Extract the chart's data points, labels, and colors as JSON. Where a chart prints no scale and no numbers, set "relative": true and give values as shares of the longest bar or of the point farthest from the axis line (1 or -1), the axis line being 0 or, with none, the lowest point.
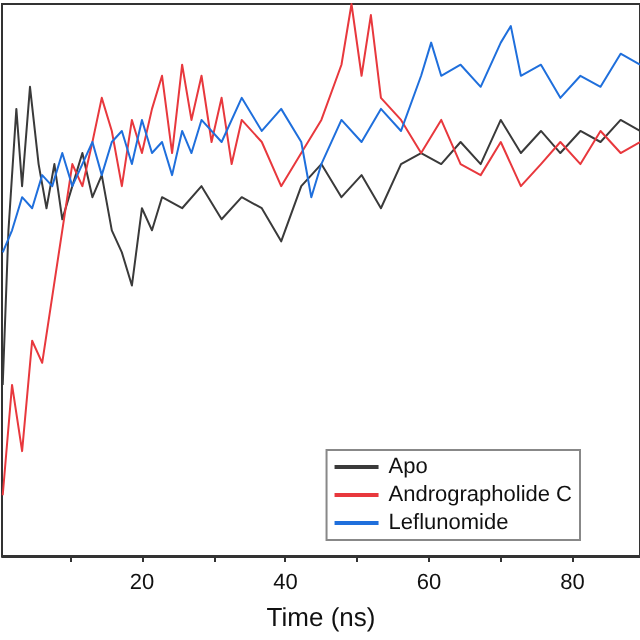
{
  "chart_data": {
    "type": "line",
    "xlabel": "Time (ns)",
    "relative": true,
    "xlim": [
      0.5,
      89.4
    ],
    "xticks": [
      {
        "value": 10,
        "label": null
      },
      20,
      {
        "value": 30,
        "label": null
      },
      40,
      {
        "value": 50,
        "label": null
      },
      60,
      {
        "value": 70,
        "label": null
      },
      80
    ],
    "grid": false,
    "legend": "bottom right",
    "marker": "none",
    "line_style": "solid",
    "series": [
      {
        "name": "Apo",
        "color": "#3a3a3a",
        "x": [
          0.6,
          1.4,
          2.5,
          3.3,
          4.4,
          5.6,
          6.7,
          7.8,
          8.9,
          10.3,
          11.7,
          13.1,
          14.4,
          15.8,
          17.2,
          18.6,
          20,
          21.4,
          22.8,
          25.6,
          28.3,
          31.1,
          33.9,
          36.7,
          39.4,
          42.2,
          45,
          47.8,
          50.6,
          53.3,
          56.1,
          58.9,
          61.7,
          64.4,
          67.2,
          70,
          72.8,
          75.6,
          78.3,
          81.1,
          83.9,
          86.7,
          89.4
        ],
        "values": [
          0.31,
          0.59,
          0.81,
          0.67,
          0.85,
          0.71,
          0.63,
          0.71,
          0.61,
          0.67,
          0.73,
          0.65,
          0.69,
          0.59,
          0.55,
          0.49,
          0.63,
          0.59,
          0.65,
          0.63,
          0.67,
          0.61,
          0.65,
          0.63,
          0.57,
          0.67,
          0.71,
          0.65,
          0.69,
          0.63,
          0.71,
          0.73,
          0.71,
          0.75,
          0.71,
          0.79,
          0.73,
          0.77,
          0.73,
          0.77,
          0.75,
          0.79,
          0.77
        ]
      },
      {
        "name": "Andrographolide C",
        "color": "#e8383d",
        "x": [
          0.6,
          1.9,
          3.3,
          4.7,
          6.1,
          7.5,
          8.9,
          10.3,
          11.7,
          13.1,
          14.4,
          15.8,
          17.2,
          18.6,
          20,
          21.4,
          22.8,
          24.2,
          25.6,
          26.9,
          28.3,
          29.7,
          31.1,
          32.5,
          33.9,
          36.7,
          39.4,
          42.2,
          45,
          47.8,
          49.2,
          50.6,
          51.9,
          53.3,
          56.1,
          58.9,
          61.7,
          64.4,
          67.2,
          70,
          72.8,
          75.6,
          78.3,
          81.1,
          83.9,
          86.7,
          89.4
        ],
        "values": [
          0.11,
          0.31,
          0.19,
          0.39,
          0.35,
          0.47,
          0.59,
          0.71,
          0.67,
          0.75,
          0.83,
          0.77,
          0.67,
          0.79,
          0.73,
          0.81,
          0.87,
          0.73,
          0.89,
          0.79,
          0.87,
          0.75,
          0.83,
          0.71,
          0.79,
          0.75,
          0.67,
          0.73,
          0.79,
          0.89,
          1.0,
          0.87,
          0.98,
          0.83,
          0.79,
          0.73,
          0.79,
          0.71,
          0.69,
          0.75,
          0.67,
          0.71,
          0.75,
          0.71,
          0.77,
          0.73,
          0.75
        ]
      },
      {
        "name": "Leflunomide",
        "color": "#1f6fdc",
        "x": [
          0.6,
          1.9,
          3.3,
          4.7,
          6.1,
          7.5,
          8.9,
          10.3,
          11.7,
          13.1,
          14.4,
          15.8,
          17.2,
          18.6,
          20,
          21.4,
          22.8,
          24.2,
          25.6,
          26.9,
          28.3,
          31.1,
          33.9,
          36.7,
          39.4,
          42.2,
          43.6,
          45,
          47.8,
          50.6,
          53.3,
          56.1,
          58.9,
          60.3,
          61.7,
          64.4,
          67.2,
          70,
          71.4,
          72.8,
          75.6,
          78.3,
          81.1,
          83.9,
          86.7,
          89.4
        ],
        "values": [
          0.55,
          0.59,
          0.65,
          0.63,
          0.69,
          0.67,
          0.73,
          0.67,
          0.71,
          0.75,
          0.69,
          0.75,
          0.77,
          0.71,
          0.79,
          0.73,
          0.75,
          0.69,
          0.77,
          0.73,
          0.79,
          0.75,
          0.83,
          0.77,
          0.81,
          0.75,
          0.65,
          0.71,
          0.79,
          0.75,
          0.81,
          0.77,
          0.87,
          0.93,
          0.87,
          0.89,
          0.85,
          0.93,
          0.96,
          0.87,
          0.89,
          0.83,
          0.87,
          0.85,
          0.91,
          0.89
        ]
      }
    ]
  }
}
